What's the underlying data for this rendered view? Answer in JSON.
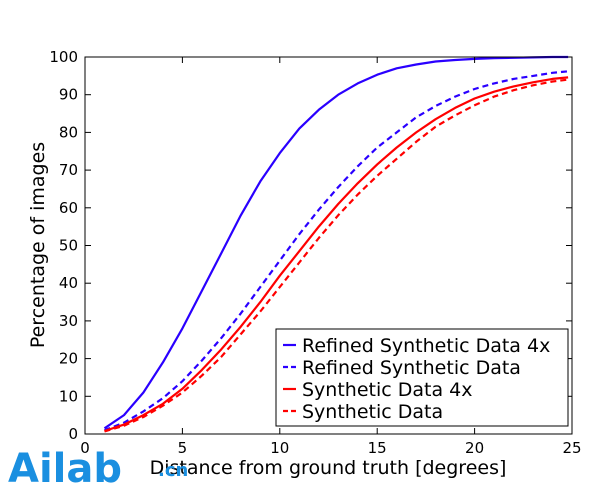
{
  "chart_data": {
    "type": "line",
    "xlabel": "Distance from ground truth [degrees]",
    "ylabel": "Percentage of images",
    "xlim": [
      0,
      25
    ],
    "ylim": [
      0,
      100
    ],
    "xticks": [
      0,
      5,
      10,
      15,
      20,
      25
    ],
    "yticks": [
      0,
      10,
      20,
      30,
      40,
      50,
      60,
      70,
      80,
      90,
      100
    ],
    "legend_position": "lower-right",
    "x": [
      1,
      2,
      3,
      4,
      5,
      6,
      7,
      8,
      9,
      10,
      11,
      12,
      13,
      14,
      15,
      16,
      17,
      18,
      19,
      20,
      21,
      22,
      23,
      24,
      24.8
    ],
    "series": [
      {
        "name": "Refined Synthetic Data 4x",
        "color": "#2a00ff",
        "style": "solid",
        "values": [
          1.5,
          5,
          11,
          19,
          28,
          38,
          48,
          58,
          67,
          74.5,
          81,
          86,
          90,
          93,
          95.3,
          97,
          98,
          98.8,
          99.2,
          99.5,
          99.7,
          99.8,
          99.9,
          100,
          100
        ]
      },
      {
        "name": "Refined Synthetic Data",
        "color": "#2a00ff",
        "style": "dashed",
        "values": [
          1,
          3,
          6,
          9.5,
          14,
          19.5,
          25.5,
          32,
          39,
          46,
          53,
          59.5,
          65.5,
          71,
          76,
          80,
          84,
          87,
          89.5,
          91.5,
          93,
          94.2,
          95,
          95.8,
          96.2
        ]
      },
      {
        "name": "Synthetic Data 4x",
        "color": "#ff0000",
        "style": "solid",
        "values": [
          0.8,
          2.5,
          5,
          8,
          12,
          17,
          22.5,
          28.5,
          35,
          42,
          48.5,
          55,
          61,
          66.5,
          71.5,
          76,
          80,
          83.5,
          86.5,
          89,
          90.8,
          92.2,
          93.3,
          94.2,
          94.6
        ]
      },
      {
        "name": "Synthetic Data",
        "color": "#ff0000",
        "style": "dashed",
        "values": [
          0.7,
          2.2,
          4.5,
          7.5,
          11,
          15.5,
          20.5,
          26.5,
          32.5,
          39,
          45.5,
          52,
          58,
          63.5,
          68.5,
          73,
          77.5,
          81.5,
          84.5,
          87.2,
          89.5,
          91.2,
          92.5,
          93.5,
          94
        ]
      }
    ]
  },
  "watermark": {
    "logo_text": "Ailab",
    "suffix_text": ".cn",
    "color": "#1a8fe0"
  }
}
